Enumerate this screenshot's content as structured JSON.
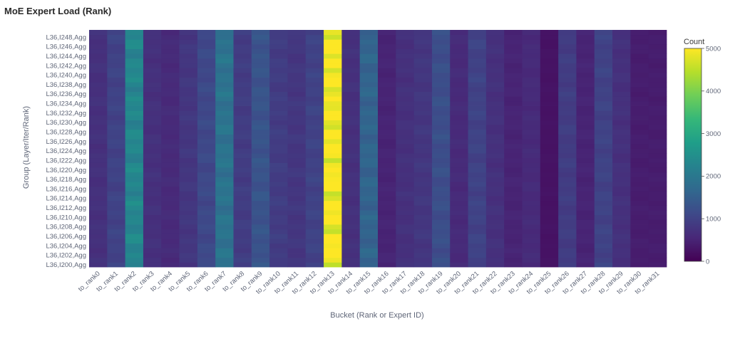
{
  "title": "MoE Expert Load (Rank)",
  "chart_data": {
    "type": "heatmap",
    "title": "MoE Expert Load (Rank)",
    "xlabel": "Bucket (Rank or Expert ID)",
    "ylabel": "Group (Layer/Iter/Rank)",
    "x_categories": [
      "to_rank0",
      "to_rank1",
      "to_rank2",
      "to_rank3",
      "to_rank4",
      "to_rank5",
      "to_rank6",
      "to_rank7",
      "to_rank8",
      "to_rank9",
      "to_rank10",
      "to_rank11",
      "to_rank12",
      "to_rank13",
      "to_rank14",
      "to_rank15",
      "to_rank16",
      "to_rank17",
      "to_rank18",
      "to_rank19",
      "to_rank20",
      "to_rank21",
      "to_rank22",
      "to_rank23",
      "to_rank24",
      "to_rank25",
      "to_rank26",
      "to_rank27",
      "to_rank28",
      "to_rank29",
      "to_rank30",
      "to_rank31"
    ],
    "y_tick_labels": [
      "L36,I200,Agg",
      "L36,I202,Agg",
      "L36,I204,Agg",
      "L36,I206,Agg",
      "L36,I208,Agg",
      "L36,I210,Agg",
      "L36,I212,Agg",
      "L36,I214,Agg",
      "L36,I216,Agg",
      "L36,I218,Agg",
      "L36,I220,Agg",
      "L36,I222,Agg",
      "L36,I224,Agg",
      "L36,I226,Agg",
      "L36,I228,Agg",
      "L36,I230,Agg",
      "L36,I232,Agg",
      "L36,I234,Agg",
      "L36,I236,Agg",
      "L36,I238,Agg",
      "L36,I240,Agg",
      "L36,I242,Agg",
      "L36,I244,Agg",
      "L36,I246,Agg",
      "L36,I248,Agg"
    ],
    "rows": 50,
    "row_start_iter": 200,
    "row_label_prefix": "L36,I",
    "row_label_suffix": ",Agg",
    "column_values": [
      700,
      1000,
      2300,
      700,
      600,
      800,
      1100,
      1900,
      900,
      1300,
      900,
      800,
      1000,
      5000,
      700,
      1600,
      500,
      700,
      800,
      1200,
      600,
      1000,
      700,
      500,
      600,
      250,
      900,
      500,
      1000,
      700,
      400,
      400
    ],
    "colorscale": [
      "#440154",
      "#482878",
      "#3e4989",
      "#31688e",
      "#26828e",
      "#1f9e89",
      "#35b779",
      "#6ece58",
      "#b5de2b",
      "#fde725"
    ],
    "zmin": 0,
    "zmax": 5000,
    "colorbar": {
      "title": "Count",
      "ticks": [
        0,
        1000,
        2000,
        3000,
        4000,
        5000
      ]
    }
  }
}
